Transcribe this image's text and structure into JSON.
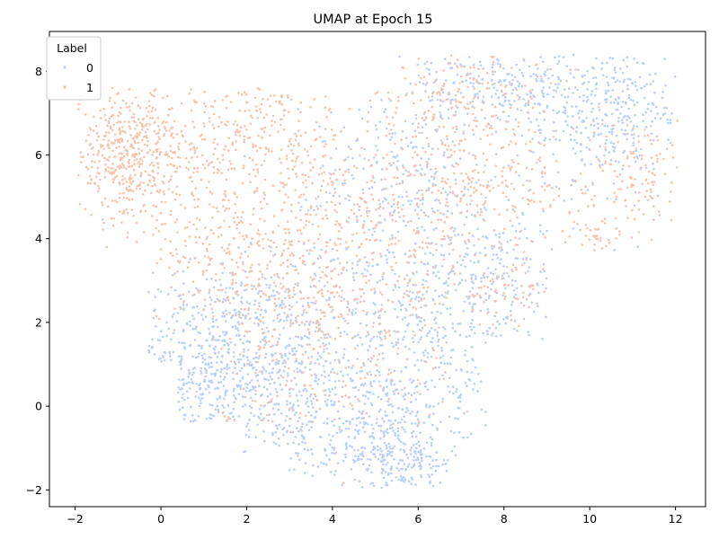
{
  "chart_data": {
    "type": "scatter",
    "title": "UMAP at Epoch 15",
    "xlabel": "",
    "ylabel": "",
    "xlim": [
      -2.6,
      12.7
    ],
    "ylim": [
      -2.4,
      8.95
    ],
    "xticks": [
      -2,
      0,
      2,
      4,
      6,
      8,
      10,
      12
    ],
    "yticks": [
      -2,
      0,
      2,
      4,
      6,
      8
    ],
    "grid": false,
    "legend": {
      "title": "Label",
      "placement": "top-left"
    },
    "series": [
      {
        "name": "0",
        "color": "#b9cff7",
        "clusters": [
          {
            "cx": 1.2,
            "cy": 1.0,
            "sx": 1.0,
            "sy": 1.2,
            "n": 520
          },
          {
            "cx": 2.9,
            "cy": 0.8,
            "sx": 0.9,
            "sy": 1.2,
            "n": 300
          },
          {
            "cx": 4.8,
            "cy": -0.5,
            "sx": 0.9,
            "sy": 0.8,
            "n": 260
          },
          {
            "cx": 5.6,
            "cy": -1.3,
            "sx": 0.7,
            "sy": 0.5,
            "n": 160
          },
          {
            "cx": 5.2,
            "cy": 2.6,
            "sx": 1.2,
            "sy": 1.5,
            "n": 340
          },
          {
            "cx": 6.8,
            "cy": 1.2,
            "sx": 0.9,
            "sy": 1.6,
            "n": 220
          },
          {
            "cx": 7.8,
            "cy": 3.2,
            "sx": 1.0,
            "sy": 0.9,
            "n": 160
          },
          {
            "cx": 5.8,
            "cy": 5.5,
            "sx": 1.2,
            "sy": 1.0,
            "n": 220
          },
          {
            "cx": 8.6,
            "cy": 7.6,
            "sx": 0.9,
            "sy": 0.5,
            "n": 160
          },
          {
            "cx": 10.8,
            "cy": 7.2,
            "sx": 0.9,
            "sy": 0.7,
            "n": 200
          },
          {
            "cx": 9.8,
            "cy": 6.2,
            "sx": 0.8,
            "sy": 0.7,
            "n": 100
          },
          {
            "cx": 7.0,
            "cy": 7.8,
            "sx": 0.8,
            "sy": 0.5,
            "n": 100
          }
        ]
      },
      {
        "name": "1",
        "color": "#f5c4ab",
        "clusters": [
          {
            "cx": -0.8,
            "cy": 6.0,
            "sx": 0.6,
            "sy": 0.8,
            "n": 440
          },
          {
            "cx": 0.9,
            "cy": 5.9,
            "sx": 0.7,
            "sy": 0.9,
            "n": 160
          },
          {
            "cx": 2.4,
            "cy": 6.8,
            "sx": 0.8,
            "sy": 0.6,
            "n": 140
          },
          {
            "cx": 3.3,
            "cy": 5.2,
            "sx": 0.8,
            "sy": 0.9,
            "n": 140
          },
          {
            "cx": 1.5,
            "cy": 3.6,
            "sx": 0.9,
            "sy": 0.8,
            "n": 180
          },
          {
            "cx": 3.2,
            "cy": 2.8,
            "sx": 1.0,
            "sy": 1.0,
            "n": 200
          },
          {
            "cx": 5.2,
            "cy": 3.9,
            "sx": 1.3,
            "sy": 1.2,
            "n": 240
          },
          {
            "cx": 6.6,
            "cy": 5.8,
            "sx": 1.0,
            "sy": 1.2,
            "n": 160
          },
          {
            "cx": 8.4,
            "cy": 5.4,
            "sx": 0.9,
            "sy": 0.8,
            "n": 120
          },
          {
            "cx": 11.2,
            "cy": 5.5,
            "sx": 0.5,
            "sy": 0.8,
            "n": 110
          },
          {
            "cx": 10.1,
            "cy": 4.1,
            "sx": 0.4,
            "sy": 0.3,
            "n": 40
          },
          {
            "cx": 8.3,
            "cy": 2.9,
            "sx": 0.6,
            "sy": 0.5,
            "n": 60
          },
          {
            "cx": 7.0,
            "cy": 7.6,
            "sx": 0.9,
            "sy": 0.6,
            "n": 120
          },
          {
            "cx": 2.9,
            "cy": 1.0,
            "sx": 0.8,
            "sy": 1.0,
            "n": 80
          },
          {
            "cx": 5.0,
            "cy": 1.2,
            "sx": 1.0,
            "sy": 1.0,
            "n": 70
          }
        ]
      }
    ]
  }
}
